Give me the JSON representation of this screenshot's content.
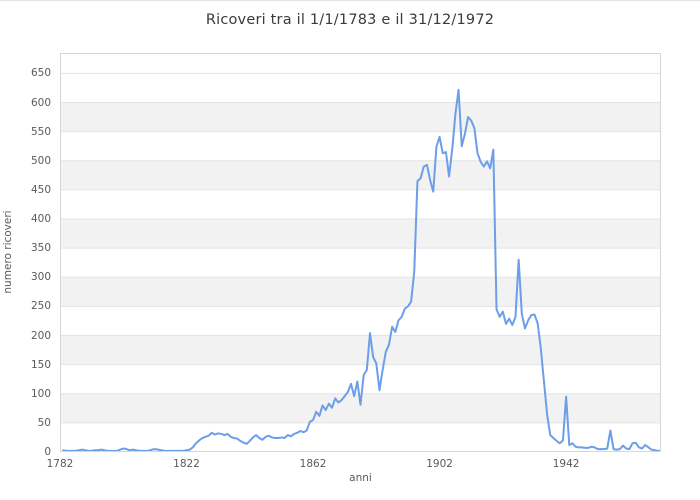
{
  "chart_data": {
    "type": "line",
    "title": "Ricoveri tra il 1/1/1783 e il 31/12/1972",
    "xlabel": "anni",
    "ylabel": "numero ricoveri",
    "xlim": [
      1782,
      1972
    ],
    "ylim": [
      0,
      685
    ],
    "x_ticks": [
      1782,
      1822,
      1862,
      1902,
      1942
    ],
    "y_ticks": [
      0,
      50,
      100,
      150,
      200,
      250,
      300,
      350,
      400,
      450,
      500,
      550,
      600,
      650
    ],
    "grid": "horizontal gridlines with alternating shaded bands",
    "legend_position": "none",
    "shaded_bands": [
      [
        50,
        100
      ],
      [
        150,
        200
      ],
      [
        250,
        300
      ],
      [
        350,
        400
      ],
      [
        450,
        500
      ],
      [
        550,
        600
      ]
    ],
    "colors": {
      "line": "#6d9ee8",
      "band": "#f2f2f2",
      "gridline": "#e4e4e4",
      "plot_border": "#d6d6d6",
      "tick_label": "#5a5a5a",
      "title": "#3a3a3a",
      "background": "#ffffff"
    },
    "series": [
      {
        "name": "numero ricoveri",
        "x_start": 1783,
        "x_step": 1,
        "x_end": 1972,
        "values": [
          3,
          2,
          2,
          2,
          2,
          3,
          4,
          3,
          2,
          2,
          3,
          3,
          4,
          3,
          2,
          2,
          2,
          2,
          4,
          6,
          5,
          3,
          4,
          3,
          2,
          2,
          2,
          2,
          4,
          5,
          4,
          3,
          2,
          2,
          2,
          2,
          2,
          2,
          2,
          3,
          4,
          8,
          15,
          20,
          24,
          26,
          28,
          33,
          30,
          32,
          31,
          29,
          31,
          26,
          24,
          23,
          19,
          16,
          14,
          19,
          25,
          29,
          24,
          21,
          26,
          28,
          25,
          24,
          24,
          25,
          24,
          29,
          27,
          31,
          33,
          36,
          34,
          37,
          52,
          55,
          69,
          62,
          80,
          72,
          83,
          76,
          92,
          85,
          89,
          96,
          103,
          117,
          96,
          121,
          81,
          132,
          141,
          204,
          163,
          152,
          106,
          141,
          172,
          184,
          215,
          206,
          226,
          232,
          246,
          250,
          258,
          310,
          465,
          470,
          490,
          493,
          467,
          447,
          524,
          541,
          513,
          515,
          473,
          520,
          580,
          622,
          525,
          546,
          575,
          569,
          556,
          513,
          498,
          490,
          499,
          487,
          519,
          245,
          232,
          241,
          220,
          229,
          218,
          232,
          330,
          237,
          212,
          226,
          235,
          236,
          221,
          178,
          121,
          64,
          29,
          24,
          19,
          15,
          20,
          95,
          12,
          15,
          9,
          8,
          8,
          7,
          7,
          9,
          8,
          5,
          5,
          5,
          6,
          37,
          5,
          4,
          5,
          11,
          6,
          5,
          15,
          16,
          8,
          6,
          12,
          8,
          4,
          3,
          2,
          2
        ]
      }
    ]
  }
}
